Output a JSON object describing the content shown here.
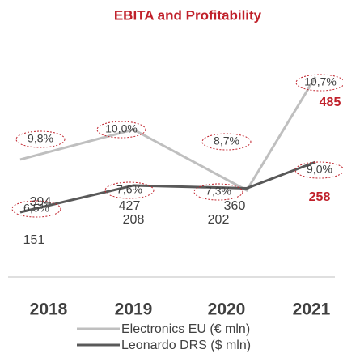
{
  "chart_data": {
    "type": "line",
    "title": "EBITA and Profitability",
    "categories": [
      "2018",
      "2019",
      "2020",
      "2021"
    ],
    "series": [
      {
        "name": "Electronics EU (€ mln)",
        "color": "#bfbfbf",
        "values": [
          394,
          427,
          360,
          485
        ],
        "annotations": [
          "9,8%",
          "10,0%",
          "8,7%",
          "10,7%"
        ]
      },
      {
        "name": "Leonardo DRS ($ mln)",
        "color": "#595959",
        "values": [
          151,
          208,
          202,
          258
        ],
        "annotations": [
          "6,5%",
          "7,6%",
          "7,3%",
          "9,0%"
        ]
      }
    ],
    "highlight_color": "#c0202a"
  }
}
